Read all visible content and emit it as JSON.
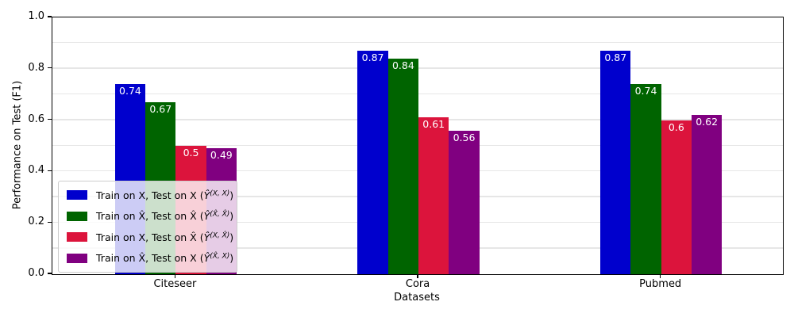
{
  "chart_data": {
    "type": "bar",
    "title": "",
    "xlabel": "Datasets",
    "ylabel": "Performance on Test (F1)",
    "categories": [
      "Citeseer",
      "Cora",
      "Pubmed"
    ],
    "series": [
      {
        "name": "Train on X, Test on X (Ŷ^(X, X))",
        "color": "#0000CD",
        "values": [
          0.74,
          0.87,
          0.87
        ],
        "bar_labels": [
          "0.74",
          "0.87",
          "0.87"
        ]
      },
      {
        "name": "Train on X̂, Test on X̂ (Ŷ^(X̂, X̂))",
        "color": "#006400",
        "values": [
          0.67,
          0.84,
          0.74
        ],
        "bar_labels": [
          "0.67",
          "0.84",
          "0.74"
        ]
      },
      {
        "name": "Train on X, Test on X̂ (Ŷ^(X, X̂))",
        "color": "#DC143C",
        "values": [
          0.5,
          0.61,
          0.6
        ],
        "bar_labels": [
          "0.5",
          "0.61",
          "0.6"
        ]
      },
      {
        "name": "Train on X̂, Test on X (Ŷ^(X̂, X))",
        "color": "#800080",
        "values": [
          0.49,
          0.56,
          0.62
        ],
        "bar_labels": [
          "0.49",
          "0.56",
          "0.62"
        ]
      }
    ],
    "ylim": [
      0.0,
      1.0
    ],
    "yticks": [
      0.0,
      0.2,
      0.4,
      0.6,
      0.8,
      1.0
    ],
    "grid": {
      "show": true,
      "step": 0.1,
      "color": "#e6e6e6"
    },
    "bar_label_color": "#ffffff",
    "legend": {
      "position": "lower left",
      "items": [
        {
          "color": "#0000CD",
          "prefix": "Train on X, Test on X",
          "formula_base": "Ŷ",
          "formula_sup": "(X, X)"
        },
        {
          "color": "#006400",
          "prefix": "Train on X̂, Test on X̂",
          "formula_base": "Ŷ",
          "formula_sup": "(X̂, X̂)"
        },
        {
          "color": "#DC143C",
          "prefix": "Train on X, Test on X̂",
          "formula_base": "Ŷ",
          "formula_sup": "(X, X̂)"
        },
        {
          "color": "#800080",
          "prefix": "Train on X̂, Test on X",
          "formula_base": "Ŷ",
          "formula_sup": "(X̂, X)"
        }
      ]
    }
  }
}
